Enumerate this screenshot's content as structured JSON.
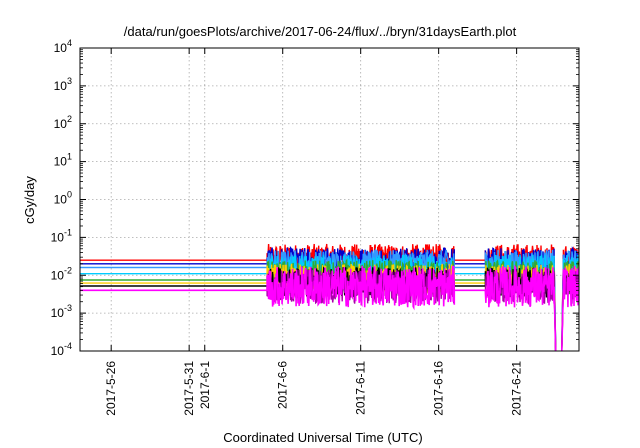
{
  "chart_data": {
    "type": "line",
    "title": "/data/run/goesPlots/archive/2017-06-24/flux/../bryn/31daysEarth.plot",
    "xlabel": "Coordinated Universal Time (UTC)",
    "ylabel": "cGy/day",
    "yscale": "log",
    "ylim": [
      0.0001,
      10000
    ],
    "xlim": [
      "2017-05-24",
      "2017-06-25"
    ],
    "grid": true,
    "legend": "none",
    "y_ticks": [
      {
        "base": "10",
        "exp": "-4",
        "value": 0.0001
      },
      {
        "base": "10",
        "exp": "-3",
        "value": 0.001
      },
      {
        "base": "10",
        "exp": "-2",
        "value": 0.01
      },
      {
        "base": "10",
        "exp": "-1",
        "value": 0.1
      },
      {
        "base": "10",
        "exp": "0",
        "value": 1
      },
      {
        "base": "10",
        "exp": "1",
        "value": 10
      },
      {
        "base": "10",
        "exp": "2",
        "value": 100
      },
      {
        "base": "10",
        "exp": "3",
        "value": 1000
      },
      {
        "base": "10",
        "exp": "4",
        "value": 10000
      }
    ],
    "x_ticks": [
      {
        "label": "2017-5-26",
        "date": "2017-05-26"
      },
      {
        "label": "2017-5-31",
        "date": "2017-05-31"
      },
      {
        "label": "2017-6-1",
        "date": "2017-06-01"
      },
      {
        "label": "2017-6-6",
        "date": "2017-06-06"
      },
      {
        "label": "2017-6-11",
        "date": "2017-06-11"
      },
      {
        "label": "2017-6-16",
        "date": "2017-06-16"
      },
      {
        "label": "2017-6-21",
        "date": "2017-06-21"
      }
    ],
    "series": [
      {
        "color": "#ff0000",
        "flat": 0.025,
        "active": 0.03,
        "amp": 0.35
      },
      {
        "color": "#0000cc",
        "flat": 0.02,
        "active": 0.024,
        "amp": 0.35
      },
      {
        "color": "#3399ff",
        "flat": 0.016,
        "active": 0.021,
        "amp": 0.35
      },
      {
        "color": "#00ccff",
        "flat": 0.011,
        "active": 0.014,
        "amp": 0.4
      },
      {
        "color": "#33aa33",
        "flat": 0.0075,
        "active": 0.01,
        "amp": 0.4
      },
      {
        "color": "#ffcc00",
        "flat": 0.0062,
        "active": 0.008,
        "amp": 0.4
      },
      {
        "color": "#000000",
        "flat": 0.0052,
        "active": 0.0065,
        "amp": 0.4
      },
      {
        "color": "#aa00aa",
        "flat": 0.004,
        "active": 0.005,
        "amp": 0.45
      },
      {
        "color": "#ff00ff",
        "flat": 0.004,
        "active": 0.005,
        "amp": 0.55
      }
    ],
    "segments": [
      {
        "start": "2017-05-24",
        "end": "2017-06-05",
        "kind": "flat"
      },
      {
        "start": "2017-06-05",
        "end": "2017-06-17",
        "kind": "active"
      },
      {
        "start": "2017-06-17",
        "end": "2017-06-19",
        "kind": "flat"
      },
      {
        "start": "2017-06-19",
        "end": "2017-06-23.4",
        "kind": "active"
      },
      {
        "start": "2017-06-23.4",
        "end": "2017-06-24",
        "kind": "dropout"
      },
      {
        "start": "2017-06-24",
        "end": "2017-06-25",
        "kind": "active"
      }
    ]
  }
}
